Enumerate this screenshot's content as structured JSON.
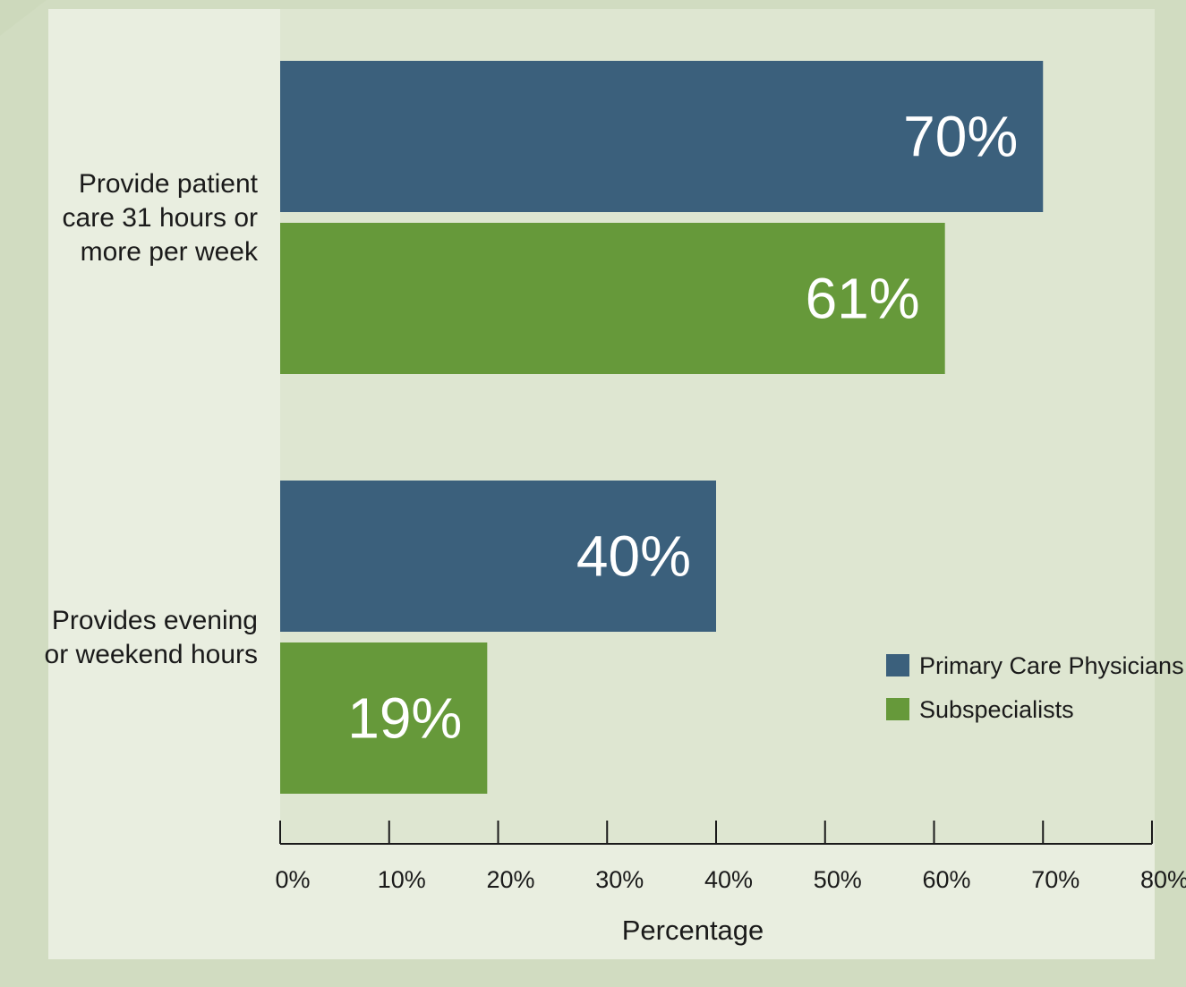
{
  "chart_data": {
    "type": "bar",
    "orientation": "horizontal",
    "categories": [
      [
        "Provide patient",
        "care 31 hours or",
        "more per week"
      ],
      [
        "Provides evening",
        "or weekend hours"
      ]
    ],
    "series": [
      {
        "name": "Primary Care Physicians",
        "color": "#3b607c",
        "values": [
          70,
          40
        ],
        "labels": [
          "70%",
          "40%"
        ]
      },
      {
        "name": "Subspecialists",
        "color": "#66993a",
        "values": [
          61,
          19
        ],
        "labels": [
          "61%",
          "19%"
        ]
      }
    ],
    "xlim": [
      0,
      80
    ],
    "xticks": [
      0,
      10,
      20,
      30,
      40,
      50,
      60,
      70,
      80
    ],
    "xtick_labels": [
      "0%",
      "10%",
      "20%",
      "30%",
      "40%",
      "50%",
      "60%",
      "70%",
      "80%"
    ],
    "xlabel": "Percentage",
    "ylabel": "",
    "title": "",
    "grid": false,
    "legend_position": "right"
  }
}
